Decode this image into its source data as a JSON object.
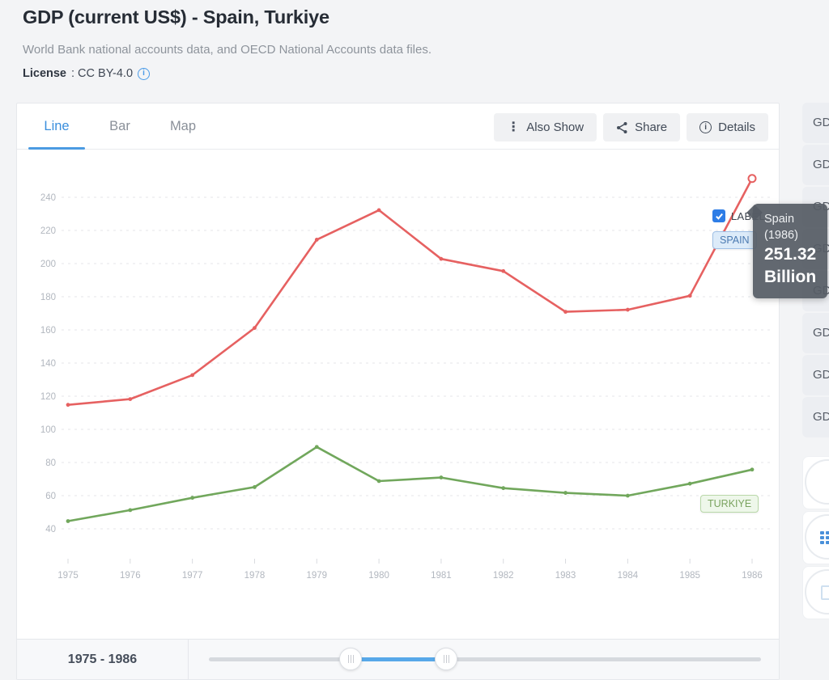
{
  "header": {
    "title": "GDP (current US$) - Spain, Turkiye",
    "subtitle": "World Bank national accounts data, and OECD National Accounts data files.",
    "license_label": "License",
    "license_value": ": CC BY-4.0"
  },
  "tabs": [
    {
      "label": "Line",
      "active": true
    },
    {
      "label": "Bar",
      "active": false
    },
    {
      "label": "Map",
      "active": false
    }
  ],
  "toolbar": {
    "also_show_label": "Also Show",
    "share_label": "Share",
    "details_label": "Details"
  },
  "chart": {
    "label_checkbox_text": "LABEL",
    "label_checked": true,
    "spain_chip": "SPAIN",
    "turkiye_chip": "TURKIYE"
  },
  "tooltip": {
    "country": "Spain",
    "year": "(1986)",
    "value": "251.32",
    "unit": "Billion"
  },
  "chart_data": {
    "type": "line",
    "title": "GDP (current US$) - Spain, Turkiye",
    "x": [
      1975,
      1976,
      1977,
      1978,
      1979,
      1980,
      1981,
      1982,
      1983,
      1984,
      1985,
      1986
    ],
    "series": [
      {
        "name": "Spain",
        "color": "#e66161",
        "values": [
          114.79,
          118.25,
          132.73,
          161.17,
          214.44,
          232.24,
          202.85,
          195.48,
          170.91,
          172.17,
          180.57,
          251.32
        ]
      },
      {
        "name": "Turkiye",
        "color": "#71a75c",
        "values": [
          44.63,
          51.28,
          58.68,
          65.15,
          89.39,
          68.79,
          70.95,
          64.55,
          61.68,
          59.99,
          67.23,
          75.73
        ]
      }
    ],
    "ylim": [
      30,
      258
    ],
    "yticks": [
      40,
      60,
      80,
      100,
      120,
      140,
      160,
      180,
      200,
      220,
      240
    ],
    "grid": "horizontal-dashed",
    "legend_position": "inline-end-labels",
    "highlight_point": {
      "series": "Spain",
      "x": 1986,
      "value": 251.32,
      "display": "251.32 Billion"
    }
  },
  "sidebar": {
    "items": [
      "GD",
      "GD",
      "GD",
      "GD",
      "GD",
      "GD",
      "GD",
      "GD"
    ]
  },
  "bottom": {
    "range_label": "1975 - 1986"
  },
  "colors": {
    "accent_blue": "#3b8fdd",
    "checkbox_blue": "#2e7de6",
    "slider_blue": "#57a8e9",
    "spain_red": "#e66161",
    "turkiye_green": "#71a75c",
    "tooltip_bg": "#565d65"
  }
}
